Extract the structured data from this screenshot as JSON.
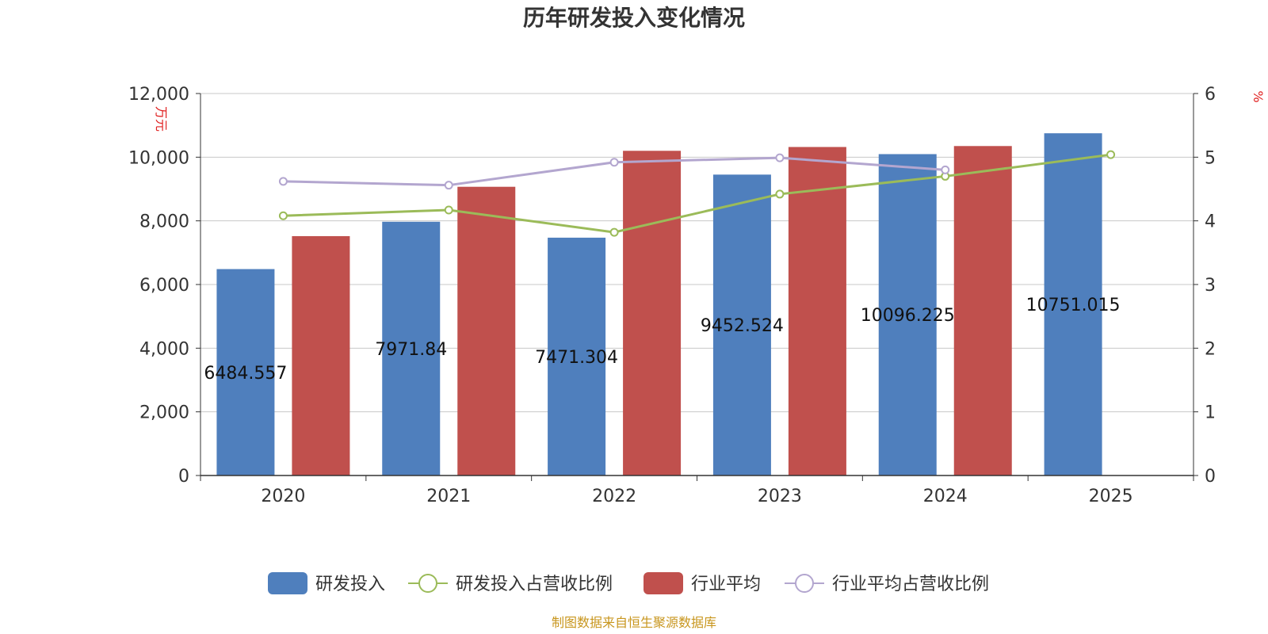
{
  "chart_data": {
    "type": "bar",
    "title": "历年研发投入变化情况",
    "source": "制图数据来自恒生聚源数据库",
    "categories": [
      "2020",
      "2021",
      "2022",
      "2023",
      "2024",
      "2025"
    ],
    "y_left": {
      "unit": "万元",
      "min": 0,
      "max": 12000,
      "ticks": [
        "0",
        "2,000",
        "4,000",
        "6,000",
        "8,000",
        "10,000",
        "12,000"
      ],
      "tick_values": [
        0,
        2000,
        4000,
        6000,
        8000,
        10000,
        12000
      ]
    },
    "y_right": {
      "unit": "%",
      "min": 0,
      "max": 6,
      "ticks": [
        "0",
        "1",
        "2",
        "3",
        "4",
        "5",
        "6"
      ],
      "tick_values": [
        0,
        1,
        2,
        3,
        4,
        5,
        6
      ]
    },
    "grid": true,
    "legend_position": "bottom",
    "series": [
      {
        "name": "研发投入",
        "kind": "bar",
        "axis": "left",
        "color": "#4f7fbd",
        "values": [
          6484.557,
          7971.84,
          7471.304,
          9452.524,
          10096.225,
          10751.015
        ],
        "labels": [
          "6484.557",
          "7971.84",
          "7471.304",
          "9452.524",
          "10096.225",
          "10751.015"
        ]
      },
      {
        "name": "研发投入占营收比例",
        "kind": "line",
        "axis": "right",
        "color": "#9bbb59",
        "values": [
          4.08,
          4.17,
          3.82,
          4.42,
          4.7,
          5.04
        ]
      },
      {
        "name": "行业平均",
        "kind": "bar",
        "axis": "left",
        "color": "#c0504d",
        "values": [
          7520,
          9070,
          10200,
          10320,
          10350,
          null
        ]
      },
      {
        "name": "行业平均占营收比例",
        "kind": "line",
        "axis": "right",
        "color": "#b3a6cf",
        "values": [
          4.62,
          4.56,
          4.92,
          4.99,
          4.8,
          null
        ]
      }
    ]
  }
}
